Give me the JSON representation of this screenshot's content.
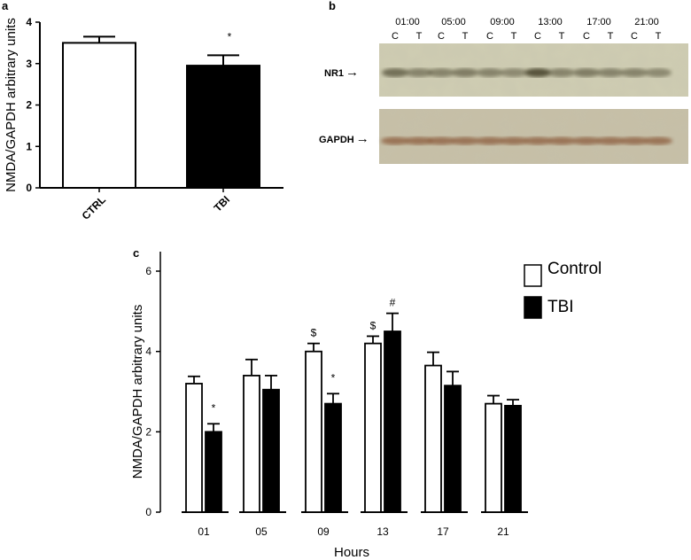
{
  "panel_labels": {
    "a": "a",
    "b": "b",
    "c": "c"
  },
  "chart_data": [
    {
      "panel": "a",
      "type": "bar",
      "categories": [
        "CTRL",
        "TBI"
      ],
      "values": [
        3.5,
        2.95
      ],
      "errors": [
        0.15,
        0.25
      ],
      "annotations": [
        "",
        "*"
      ],
      "bar_colors": [
        "#ffffff",
        "#000000"
      ],
      "ylabel": "NMDA/GAPDH arbitrary units",
      "ylim": [
        0,
        4
      ],
      "yticks": [
        "0",
        "1",
        "2",
        "3",
        "4"
      ],
      "grid": false
    },
    {
      "panel": "c",
      "type": "bar",
      "categories": [
        "01",
        "05",
        "09",
        "13",
        "17",
        "21"
      ],
      "series": [
        {
          "name": "Control",
          "color": "#ffffff",
          "values": [
            3.2,
            3.4,
            4.0,
            4.2,
            3.65,
            2.7
          ],
          "errors": [
            0.18,
            0.4,
            0.2,
            0.18,
            0.33,
            0.2
          ],
          "annotations": [
            "",
            "",
            "$",
            "$",
            "",
            ""
          ]
        },
        {
          "name": "TBI",
          "color": "#000000",
          "values": [
            2.0,
            3.05,
            2.7,
            4.5,
            3.15,
            2.65
          ],
          "errors": [
            0.2,
            0.35,
            0.25,
            0.45,
            0.35,
            0.15
          ],
          "annotations": [
            "*",
            "",
            "*",
            "#",
            "",
            ""
          ]
        }
      ],
      "xlabel": "Hours",
      "ylabel": "NMDA/GAPDH arbitrary units",
      "ylim": [
        0,
        6
      ],
      "yticks": [
        "0",
        "2",
        "4",
        "6"
      ],
      "legend": "top-right",
      "grid": false
    }
  ],
  "blot": {
    "times": [
      "01:00",
      "05:00",
      "09:00",
      "13:00",
      "17:00",
      "21:00"
    ],
    "lanes": [
      "C",
      "T",
      "C",
      "T",
      "C",
      "T",
      "C",
      "T",
      "C",
      "T",
      "C",
      "T"
    ],
    "rows": [
      {
        "label": "NR1",
        "arrow": "→"
      },
      {
        "label": "GAPDH",
        "arrow": "→"
      }
    ]
  }
}
